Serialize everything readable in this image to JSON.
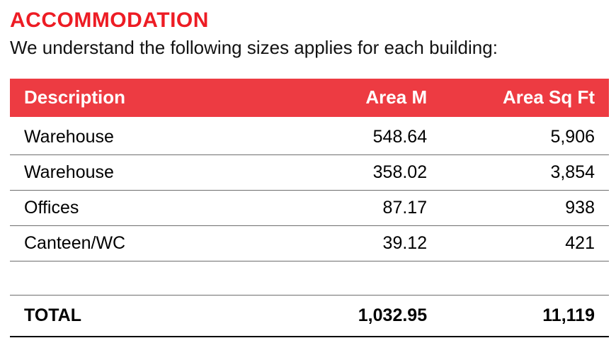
{
  "heading": "ACCOMMODATION",
  "subheading": "We understand the following sizes applies for each building:",
  "table": {
    "type": "table",
    "header_bg": "#ed3b42",
    "header_fg": "#ffffff",
    "row_border": "#6e6e6e",
    "body_text": "#000000",
    "heading_color": "#ed1c24",
    "background_color": "#ffffff",
    "heading_fontsize": 30,
    "subheading_fontsize": 26,
    "header_fontsize": 26,
    "cell_fontsize": 25,
    "columns": [
      {
        "label": "Description",
        "align": "left",
        "width_pct": 44
      },
      {
        "label": "Area M",
        "align": "right",
        "width_pct": 28
      },
      {
        "label": "Area Sq Ft",
        "align": "right",
        "width_pct": 28
      }
    ],
    "rows": [
      {
        "description": "Warehouse",
        "area_m": "548.64",
        "area_sqft": "5,906"
      },
      {
        "description": "Warehouse",
        "area_m": "358.02",
        "area_sqft": "3,854"
      },
      {
        "description": "Offices",
        "area_m": "87.17",
        "area_sqft": "938"
      },
      {
        "description": "Canteen/WC",
        "area_m": "39.12",
        "area_sqft": "421"
      }
    ],
    "total": {
      "label": "TOTAL",
      "area_m": "1,032.95",
      "area_sqft": "11,119"
    }
  }
}
